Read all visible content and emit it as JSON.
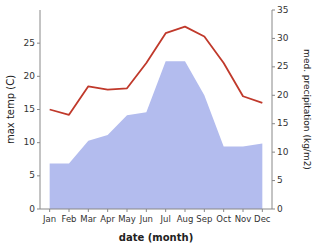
{
  "chart_data": {
    "type": "line",
    "categories": [
      "Jan",
      "Feb",
      "Mar",
      "Apr",
      "May",
      "Jun",
      "Jul",
      "Aug",
      "Sep",
      "Oct",
      "Nov",
      "Dec"
    ],
    "xlabel": "date (month)",
    "ylabel": "max temp (C)",
    "y2label": "med. precipitation (kg/m2)",
    "series": [
      {
        "type": "area",
        "axis": "y2",
        "color": "#b3bcee",
        "values": [
          8.0,
          8.0,
          12.0,
          13.0,
          16.5,
          17.0,
          26.0,
          26.0,
          20.0,
          11.0,
          11.0,
          11.5
        ]
      },
      {
        "type": "line",
        "color": "#c0392b",
        "values": [
          15.0,
          14.2,
          18.5,
          18.0,
          18.2,
          22.0,
          26.5,
          27.5,
          26.0,
          22.0,
          17.0,
          16.0
        ]
      }
    ],
    "ylim": [
      0,
      30
    ],
    "yticks": [
      0,
      5,
      10,
      15,
      20,
      25
    ],
    "y2lim": [
      0,
      35
    ],
    "y2ticks": [
      0,
      5,
      10,
      15,
      20,
      25,
      30,
      35
    ],
    "grid": false
  }
}
